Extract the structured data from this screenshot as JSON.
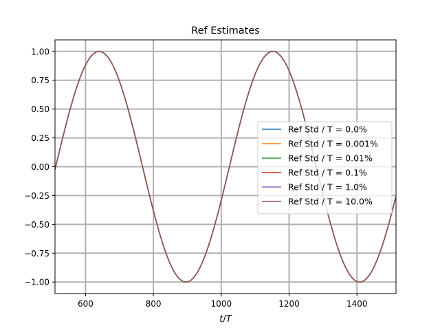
{
  "chart_data": {
    "type": "line",
    "title": "Ref Estimates",
    "xlabel": "t/T",
    "ylabel": "",
    "xlim": [
      510,
      1515
    ],
    "ylim": [
      -1.1,
      1.1
    ],
    "xticks": [
      600,
      800,
      1000,
      1200,
      1400
    ],
    "yticks": [
      -1.0,
      -0.75,
      -0.5,
      -0.25,
      0.0,
      0.25,
      0.5,
      0.75,
      1.0
    ],
    "xtick_labels": [
      "600",
      "800",
      "1000",
      "1200",
      "1400"
    ],
    "ytick_labels": [
      "−1.00",
      "−0.75",
      "−0.50",
      "−0.25",
      "0.00",
      "0.25",
      "0.50",
      "0.75",
      "1.00"
    ],
    "grid": true,
    "legend_position": "center-right",
    "curve": {
      "function": "sine",
      "amplitude": 1.0,
      "period": 512,
      "phase_zero_at": 512,
      "x_start": 510,
      "x_end": 1515
    },
    "series": [
      {
        "name": "Ref Std / T = 0.0%",
        "color": "#1f77b4"
      },
      {
        "name": "Ref Std / T = 0.001%",
        "color": "#ff7f0e"
      },
      {
        "name": "Ref Std / T = 0.01%",
        "color": "#2ca02c"
      },
      {
        "name": "Ref Std / T = 0.1%",
        "color": "#d62728"
      },
      {
        "name": "Ref Std / T = 1.0%",
        "color": "#9467bd"
      },
      {
        "name": "Ref Std / T = 10.0%",
        "color": "#8c564b"
      }
    ]
  }
}
